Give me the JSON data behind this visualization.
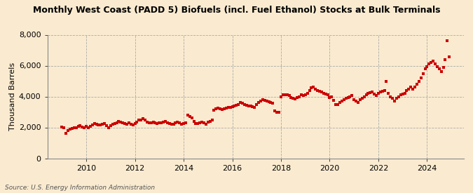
{
  "title": "Monthly West Coast (PADD 5) Biofuels (incl. Fuel Ethanol) Stocks at Bulk Terminals",
  "ylabel": "Thousand Barrels",
  "source": "Source: U.S. Energy Information Administration",
  "background_color": "#faebd0",
  "plot_bg_color": "#faebd0",
  "dot_color": "#cc0000",
  "ylim": [
    0,
    8000
  ],
  "yticks": [
    0,
    2000,
    4000,
    6000,
    8000
  ],
  "xtick_years": [
    2010,
    2012,
    2014,
    2016,
    2018,
    2020,
    2022,
    2024
  ],
  "xlim": [
    2008.4,
    2025.5
  ],
  "data": [
    [
      2009.0,
      2020
    ],
    [
      2009.083,
      1960
    ],
    [
      2009.167,
      1600
    ],
    [
      2009.25,
      1780
    ],
    [
      2009.333,
      1880
    ],
    [
      2009.417,
      1920
    ],
    [
      2009.5,
      1960
    ],
    [
      2009.583,
      2000
    ],
    [
      2009.667,
      2060
    ],
    [
      2009.75,
      2100
    ],
    [
      2009.833,
      2020
    ],
    [
      2009.917,
      1980
    ],
    [
      2010.0,
      2050
    ],
    [
      2010.083,
      2000
    ],
    [
      2010.167,
      2050
    ],
    [
      2010.25,
      2150
    ],
    [
      2010.333,
      2250
    ],
    [
      2010.417,
      2200
    ],
    [
      2010.5,
      2150
    ],
    [
      2010.583,
      2180
    ],
    [
      2010.667,
      2200
    ],
    [
      2010.75,
      2250
    ],
    [
      2010.833,
      2100
    ],
    [
      2010.917,
      2000
    ],
    [
      2011.0,
      2100
    ],
    [
      2011.083,
      2200
    ],
    [
      2011.167,
      2250
    ],
    [
      2011.25,
      2300
    ],
    [
      2011.333,
      2380
    ],
    [
      2011.417,
      2350
    ],
    [
      2011.5,
      2280
    ],
    [
      2011.583,
      2250
    ],
    [
      2011.667,
      2200
    ],
    [
      2011.75,
      2280
    ],
    [
      2011.833,
      2200
    ],
    [
      2011.917,
      2150
    ],
    [
      2012.0,
      2250
    ],
    [
      2012.083,
      2350
    ],
    [
      2012.167,
      2480
    ],
    [
      2012.25,
      2500
    ],
    [
      2012.333,
      2550
    ],
    [
      2012.417,
      2480
    ],
    [
      2012.5,
      2350
    ],
    [
      2012.583,
      2300
    ],
    [
      2012.667,
      2280
    ],
    [
      2012.75,
      2350
    ],
    [
      2012.833,
      2300
    ],
    [
      2012.917,
      2250
    ],
    [
      2013.0,
      2280
    ],
    [
      2013.083,
      2300
    ],
    [
      2013.167,
      2350
    ],
    [
      2013.25,
      2380
    ],
    [
      2013.333,
      2300
    ],
    [
      2013.417,
      2250
    ],
    [
      2013.5,
      2200
    ],
    [
      2013.583,
      2200
    ],
    [
      2013.667,
      2300
    ],
    [
      2013.75,
      2350
    ],
    [
      2013.833,
      2280
    ],
    [
      2013.917,
      2200
    ],
    [
      2014.0,
      2250
    ],
    [
      2014.083,
      2300
    ],
    [
      2014.167,
      2800
    ],
    [
      2014.25,
      2700
    ],
    [
      2014.333,
      2600
    ],
    [
      2014.417,
      2400
    ],
    [
      2014.5,
      2250
    ],
    [
      2014.583,
      2250
    ],
    [
      2014.667,
      2300
    ],
    [
      2014.75,
      2350
    ],
    [
      2014.833,
      2300
    ],
    [
      2014.917,
      2200
    ],
    [
      2015.0,
      2350
    ],
    [
      2015.083,
      2400
    ],
    [
      2015.167,
      2500
    ],
    [
      2015.25,
      3100
    ],
    [
      2015.333,
      3200
    ],
    [
      2015.417,
      3250
    ],
    [
      2015.5,
      3200
    ],
    [
      2015.583,
      3150
    ],
    [
      2015.667,
      3200
    ],
    [
      2015.75,
      3250
    ],
    [
      2015.833,
      3300
    ],
    [
      2015.917,
      3280
    ],
    [
      2016.0,
      3350
    ],
    [
      2016.083,
      3400
    ],
    [
      2016.167,
      3450
    ],
    [
      2016.25,
      3500
    ],
    [
      2016.333,
      3600
    ],
    [
      2016.417,
      3550
    ],
    [
      2016.5,
      3500
    ],
    [
      2016.583,
      3450
    ],
    [
      2016.667,
      3400
    ],
    [
      2016.75,
      3380
    ],
    [
      2016.833,
      3350
    ],
    [
      2016.917,
      3300
    ],
    [
      2017.0,
      3500
    ],
    [
      2017.083,
      3600
    ],
    [
      2017.167,
      3700
    ],
    [
      2017.25,
      3800
    ],
    [
      2017.333,
      3750
    ],
    [
      2017.417,
      3700
    ],
    [
      2017.5,
      3650
    ],
    [
      2017.583,
      3600
    ],
    [
      2017.667,
      3550
    ],
    [
      2017.75,
      3050
    ],
    [
      2017.833,
      3000
    ],
    [
      2017.917,
      3000
    ],
    [
      2018.0,
      4000
    ],
    [
      2018.083,
      4100
    ],
    [
      2018.167,
      4100
    ],
    [
      2018.25,
      4100
    ],
    [
      2018.333,
      4050
    ],
    [
      2018.417,
      3950
    ],
    [
      2018.5,
      3900
    ],
    [
      2018.583,
      3850
    ],
    [
      2018.667,
      3950
    ],
    [
      2018.75,
      4000
    ],
    [
      2018.833,
      4100
    ],
    [
      2018.917,
      4050
    ],
    [
      2019.0,
      4100
    ],
    [
      2019.083,
      4200
    ],
    [
      2019.167,
      4400
    ],
    [
      2019.25,
      4550
    ],
    [
      2019.333,
      4600
    ],
    [
      2019.417,
      4500
    ],
    [
      2019.5,
      4400
    ],
    [
      2019.583,
      4350
    ],
    [
      2019.667,
      4300
    ],
    [
      2019.75,
      4200
    ],
    [
      2019.833,
      4150
    ],
    [
      2019.917,
      4100
    ],
    [
      2020.0,
      3950
    ],
    [
      2020.083,
      4000
    ],
    [
      2020.167,
      3750
    ],
    [
      2020.25,
      3500
    ],
    [
      2020.333,
      3500
    ],
    [
      2020.417,
      3600
    ],
    [
      2020.5,
      3700
    ],
    [
      2020.583,
      3800
    ],
    [
      2020.667,
      3900
    ],
    [
      2020.75,
      3950
    ],
    [
      2020.833,
      4000
    ],
    [
      2020.917,
      4050
    ],
    [
      2021.0,
      3800
    ],
    [
      2021.083,
      3700
    ],
    [
      2021.167,
      3600
    ],
    [
      2021.25,
      3800
    ],
    [
      2021.333,
      3900
    ],
    [
      2021.417,
      4000
    ],
    [
      2021.5,
      4100
    ],
    [
      2021.583,
      4200
    ],
    [
      2021.667,
      4250
    ],
    [
      2021.75,
      4300
    ],
    [
      2021.833,
      4150
    ],
    [
      2021.917,
      4050
    ],
    [
      2022.0,
      4200
    ],
    [
      2022.083,
      4300
    ],
    [
      2022.167,
      4350
    ],
    [
      2022.25,
      4400
    ],
    [
      2022.333,
      5000
    ],
    [
      2022.417,
      4200
    ],
    [
      2022.5,
      4000
    ],
    [
      2022.583,
      3900
    ],
    [
      2022.667,
      3700
    ],
    [
      2022.75,
      3900
    ],
    [
      2022.833,
      4000
    ],
    [
      2022.917,
      4100
    ],
    [
      2023.0,
      4150
    ],
    [
      2023.083,
      4200
    ],
    [
      2023.167,
      4400
    ],
    [
      2023.25,
      4500
    ],
    [
      2023.333,
      4600
    ],
    [
      2023.417,
      4500
    ],
    [
      2023.5,
      4600
    ],
    [
      2023.583,
      4800
    ],
    [
      2023.667,
      5000
    ],
    [
      2023.75,
      5200
    ],
    [
      2023.833,
      5500
    ],
    [
      2023.917,
      5800
    ],
    [
      2024.0,
      5950
    ],
    [
      2024.083,
      6100
    ],
    [
      2024.167,
      6200
    ],
    [
      2024.25,
      6300
    ],
    [
      2024.333,
      6100
    ],
    [
      2024.417,
      5950
    ],
    [
      2024.5,
      5800
    ],
    [
      2024.583,
      5600
    ],
    [
      2024.667,
      5900
    ],
    [
      2024.75,
      6400
    ],
    [
      2024.833,
      7600
    ],
    [
      2024.917,
      6550
    ]
  ]
}
